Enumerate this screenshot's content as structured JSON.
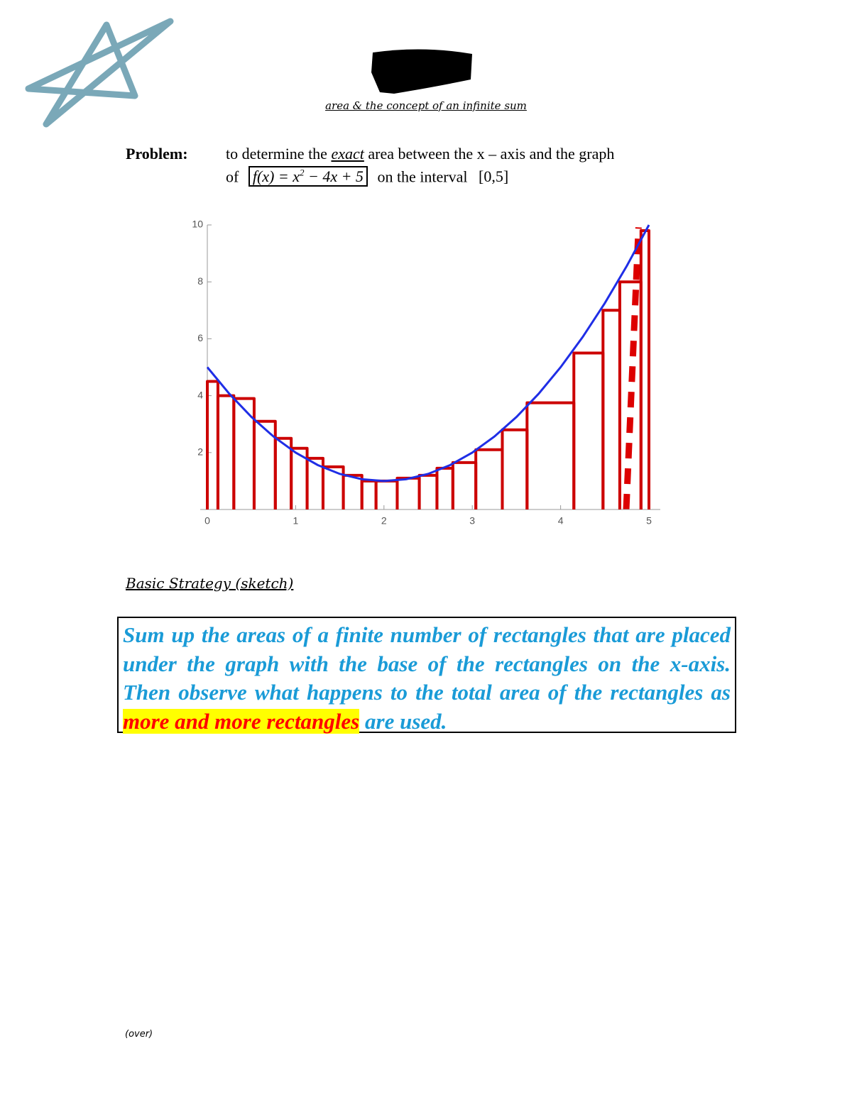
{
  "header": {
    "subtitle": "area & the concept of an infinite sum"
  },
  "problem": {
    "label": "Problem:",
    "line1_a": "to determine the",
    "line1_em": "exact",
    "line1_b": "area between the",
    "line1_c": "x – axis and the graph",
    "line2_a": "of",
    "formula_a": "f(x) = x",
    "formula_sup": "2",
    "formula_b": " − 4x + 5",
    "line2_b": "on the interval",
    "interval": "[0,5]"
  },
  "chart_data": {
    "type": "line",
    "color": "#1f2ee6",
    "xlim": [
      0,
      5
    ],
    "ylim": [
      0,
      10
    ],
    "xticks": [
      0,
      1,
      2,
      3,
      4,
      5
    ],
    "yticks": [
      2,
      4,
      6,
      8,
      10
    ],
    "x": [
      0,
      0.25,
      0.5,
      0.75,
      1,
      1.25,
      1.5,
      1.75,
      2,
      2.25,
      2.5,
      2.75,
      3,
      3.25,
      3.5,
      3.75,
      4,
      4.25,
      4.5,
      4.75,
      5
    ],
    "values": [
      5,
      4.0625,
      3.25,
      2.5625,
      2,
      1.5625,
      1.25,
      1.0625,
      1,
      1.0625,
      1.25,
      1.5625,
      2,
      2.5625,
      3.25,
      4.0625,
      5,
      6.0625,
      7.25,
      8.5625,
      10
    ],
    "rectangles": {
      "color": "#cc0000",
      "bins": [
        0,
        0.12,
        0.3,
        0.53,
        0.77,
        0.95,
        1.13,
        1.31,
        1.54,
        1.75,
        1.91,
        2.15,
        2.4,
        2.6,
        2.78,
        3.04,
        3.34,
        3.62,
        4.15,
        4.48,
        4.67,
        4.91,
        5
      ],
      "values": [
        4.5,
        4.0,
        3.9,
        3.1,
        2.5,
        2.15,
        1.8,
        1.5,
        1.2,
        1.0,
        1.0,
        1.1,
        1.2,
        1.45,
        1.65,
        2.1,
        2.8,
        3.75,
        5.5,
        7.0,
        8.0,
        9.8
      ]
    }
  },
  "strategy": {
    "heading": "Basic Strategy (sketch)",
    "text_a": "Sum up the areas of a finite number of rectangles that are placed under the graph with the base of the rectangles on the x-axis.  Then observe what happens to the total area of the rectangles as ",
    "highlight": "more and more rectangles",
    "text_b": " are used."
  },
  "footer": {
    "note": "(over)"
  }
}
